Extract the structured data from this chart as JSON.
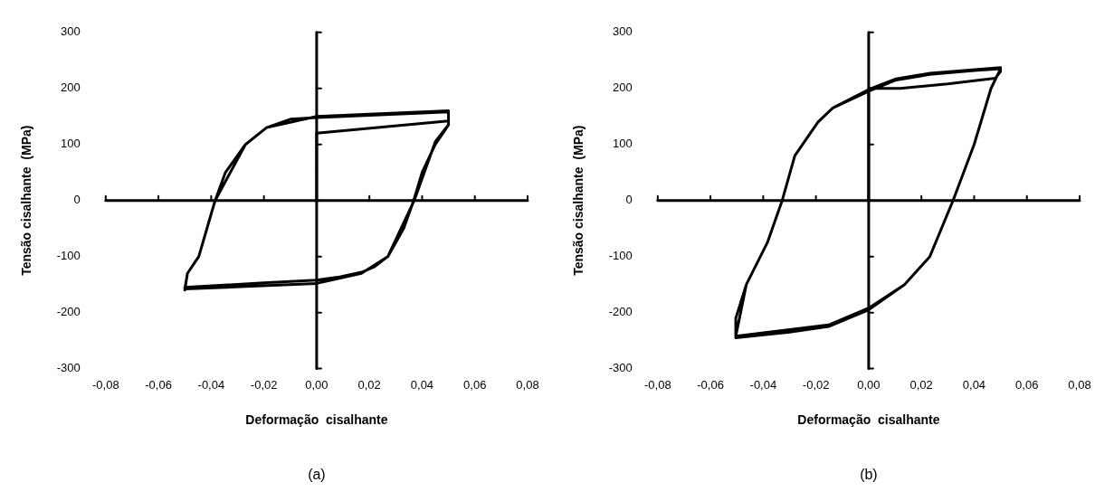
{
  "chart_data": [
    {
      "type": "line",
      "xlabel": "Deformação  cisalhante",
      "ylabel": "Tensão cisalhante  (MPa)",
      "annotations": [
        "(a)"
      ],
      "xlim": [
        -0.08,
        0.08
      ],
      "ylim": [
        -300,
        300
      ],
      "xticks": [
        {
          "value": -0.08,
          "label": "-0,08"
        },
        {
          "value": -0.06,
          "label": "-0,06"
        },
        {
          "value": -0.04,
          "label": "-0,04"
        },
        {
          "value": -0.02,
          "label": "-0,02"
        },
        {
          "value": 0,
          "label": "0,00"
        },
        {
          "value": 0.02,
          "label": "0,02"
        },
        {
          "value": 0.04,
          "label": "0,04"
        },
        {
          "value": 0.06,
          "label": "0,06"
        },
        {
          "value": 0.08,
          "label": "0,08"
        }
      ],
      "yticks": [
        -300,
        -200,
        -100,
        0,
        100,
        200,
        300
      ],
      "series": [
        {
          "color": "#000000",
          "x": [
            0,
            0,
            0.05,
            0.05,
            0.05,
            0.045,
            0.04,
            0.0368,
            0.033,
            0.027,
            0.022,
            0.017,
            0.008,
            0,
            -0.02,
            -0.05,
            -0.05,
            -0.049,
            -0.0447,
            -0.041,
            -0.0385,
            -0.0346,
            -0.027,
            -0.019,
            -0.01,
            0,
            0.02,
            0.05,
            0.05,
            0.045,
            0.037,
            0.027,
            0.017,
            0,
            -0.05,
            -0.049,
            -0.0447,
            -0.0385,
            -0.027,
            -0.019,
            0,
            0.05
          ],
          "values": [
            0,
            120,
            142,
            160,
            135,
            100,
            50,
            0,
            -50,
            -100,
            -118,
            -128,
            -137,
            -142,
            -147,
            -155,
            -160,
            -130,
            -100,
            -40,
            0,
            50,
            100,
            130,
            145,
            148,
            152,
            158,
            135,
            105,
            0,
            -100,
            -130,
            -148,
            -158,
            -130,
            -100,
            0,
            100,
            130,
            150,
            160
          ]
        }
      ]
    },
    {
      "type": "line",
      "xlabel": "Deformação  cisalhante",
      "ylabel": "Tensão cisalhante  (MPa)",
      "annotations": [
        "(b)"
      ],
      "xlim": [
        -0.08,
        0.08
      ],
      "ylim": [
        -300,
        300
      ],
      "xticks": [
        {
          "value": -0.08,
          "label": "-0,08"
        },
        {
          "value": -0.06,
          "label": "-0,06"
        },
        {
          "value": -0.04,
          "label": "-0,04"
        },
        {
          "value": -0.02,
          "label": "-0,02"
        },
        {
          "value": 0,
          "label": "0,00"
        },
        {
          "value": 0.02,
          "label": "0,02"
        },
        {
          "value": 0.04,
          "label": "0,04"
        },
        {
          "value": 0.06,
          "label": "0,06"
        },
        {
          "value": 0.08,
          "label": "0,08"
        }
      ],
      "yticks": [
        -300,
        -200,
        -100,
        0,
        100,
        200,
        300
      ],
      "series": [
        {
          "color": "#000000",
          "x": [
            0,
            0,
            0.012,
            0.03,
            0.048,
            0.05,
            0.05,
            0.0464,
            0.04,
            0.032,
            0.0232,
            0.0136,
            0,
            -0.0152,
            -0.03,
            -0.0504,
            -0.0504,
            -0.0464,
            -0.0384,
            -0.0328,
            -0.028,
            -0.0192,
            -0.0136,
            0,
            0.0104,
            0.0232,
            0.04,
            0.05,
            0.0464,
            0.04,
            0.032,
            0.0232,
            0.0136,
            0,
            -0.0152,
            -0.0504,
            -0.0464,
            -0.0384,
            -0.0328,
            -0.028,
            -0.0192,
            -0.0136,
            0,
            0.0104,
            0.0232,
            0.05
          ],
          "values": [
            0,
            200,
            200,
            208,
            218,
            230,
            235,
            200,
            100,
            0,
            -100,
            -150,
            -195,
            -225,
            -235,
            -245,
            -210,
            -150,
            -75,
            0,
            80,
            140,
            165,
            195,
            215,
            225,
            232,
            235,
            200,
            100,
            0,
            -100,
            -150,
            -192,
            -222,
            -242,
            -150,
            -75,
            0,
            80,
            140,
            165,
            198,
            217,
            227,
            237
          ]
        }
      ]
    }
  ]
}
